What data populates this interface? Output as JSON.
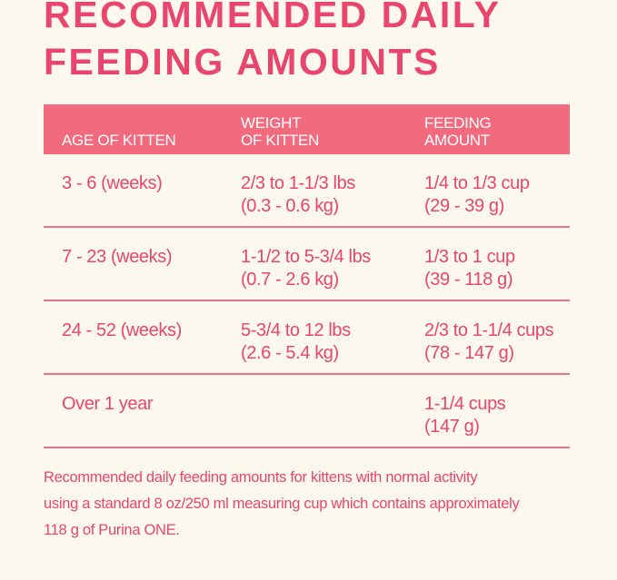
{
  "header": {
    "title_lines": [
      "RECOMMENDED DAILY",
      "FEEDING AMOUNTS"
    ]
  },
  "table": {
    "columns": [
      [
        "AGE OF KITTEN"
      ],
      [
        "WEIGHT",
        "OF KITTEN"
      ],
      [
        "FEEDING",
        "AMOUNT"
      ]
    ],
    "rows": [
      [
        [
          "3 - 6 (weeks)"
        ],
        [
          "2/3 to 1-1/3 lbs",
          "(0.3 - 0.6 kg)"
        ],
        [
          "1/4 to 1/3 cup",
          "(29 - 39 g)"
        ]
      ],
      [
        [
          "7 - 23 (weeks)"
        ],
        [
          "1-1/2 to 5-3/4 lbs",
          "(0.7 - 2.6 kg)"
        ],
        [
          "1/3 to 1 cup",
          "(39 - 118 g)"
        ]
      ],
      [
        [
          "24 - 52 (weeks)"
        ],
        [
          "5-3/4 to 12 lbs",
          "(2.6 - 5.4 kg)"
        ],
        [
          "2/3 to 1-1/4 cups",
          "(78 - 147 g)"
        ]
      ],
      [
        [
          "Over 1 year"
        ],
        [],
        [
          "1-1/4 cups",
          "(147 g)"
        ]
      ]
    ]
  },
  "footnote": {
    "lines": [
      "Recommended daily feeding amounts for kittens with normal activity",
      "using a standard 8 oz/250 ml measuring cup which contains approximately",
      "118 g of Purina ONE."
    ]
  }
}
